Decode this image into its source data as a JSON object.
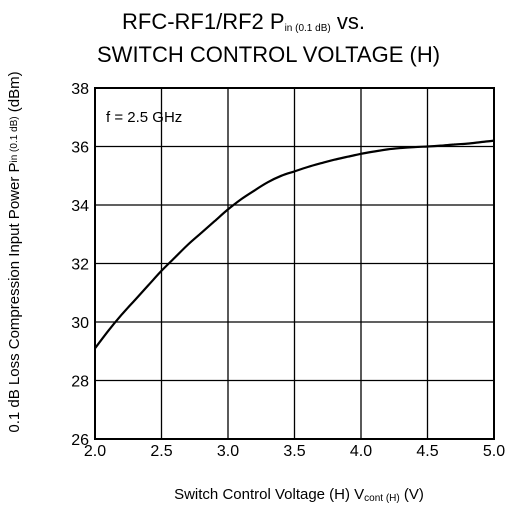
{
  "chart_data": {
    "type": "line",
    "title_line1": {
      "prefix": "RFC-RF1/RF2  P",
      "sub": "in (0.1 dB)",
      "suffix": " vs."
    },
    "title_line2": "SWITCH CONTROL VOLTAGE (H)",
    "xlabel": {
      "prefix": "Switch Control Voltage (H)  V",
      "sub": "cont (H)",
      "suffix": " (V)"
    },
    "ylabel": {
      "prefix": "0.1 dB Loss Compression Input Power  P",
      "sub": "in (0.1 dB)",
      "suffix": " (dBm)"
    },
    "annotation": "f = 2.5 GHz",
    "xlim": [
      2.0,
      5.0
    ],
    "ylim": [
      26,
      38
    ],
    "xticks": [
      "2.0",
      "2.5",
      "3.0",
      "3.5",
      "4.0",
      "4.5",
      "5.0"
    ],
    "yticks": [
      "26",
      "28",
      "30",
      "32",
      "34",
      "36",
      "38"
    ],
    "grid": true,
    "series": [
      {
        "x": [
          2.0,
          2.1,
          2.2,
          2.3,
          2.4,
          2.5,
          2.6,
          2.7,
          2.8,
          2.9,
          3.0,
          3.1,
          3.2,
          3.3,
          3.4,
          3.5,
          3.6,
          3.7,
          3.8,
          3.9,
          4.0,
          4.1,
          4.2,
          4.3,
          4.4,
          4.5,
          4.6,
          4.7,
          4.8,
          4.9,
          5.0
        ],
        "y": [
          29.1,
          29.7,
          30.25,
          30.75,
          31.25,
          31.75,
          32.2,
          32.65,
          33.05,
          33.45,
          33.85,
          34.2,
          34.5,
          34.78,
          35.0,
          35.15,
          35.3,
          35.43,
          35.55,
          35.65,
          35.75,
          35.83,
          35.9,
          35.95,
          35.98,
          36.0,
          36.03,
          36.07,
          36.1,
          36.15,
          36.2
        ]
      }
    ]
  }
}
